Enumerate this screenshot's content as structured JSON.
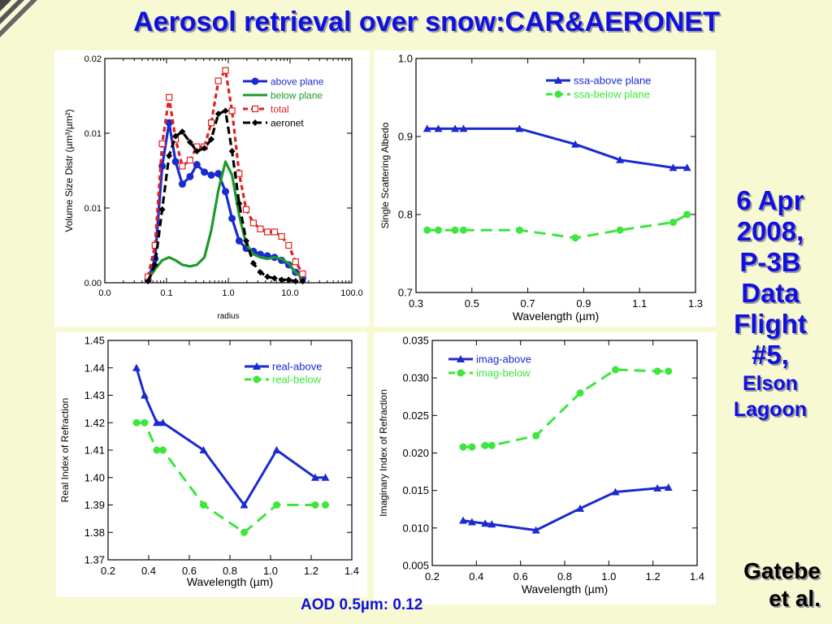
{
  "slide": {
    "title": "Aerosol retrieval over snow:CAR&AERONET",
    "side_lines": [
      "6 Apr",
      "2008,",
      "P-3B",
      "Data",
      "Flight",
      "#5,"
    ],
    "side_small_lines": [
      "Elson",
      "Lagoon"
    ],
    "credit_lines": [
      "Gatebe",
      "et al."
    ],
    "aod_text": "AOD 0.5µm: 0.12"
  },
  "chart_data": [
    {
      "id": "size",
      "type": "line",
      "title": "",
      "xlabel": "radius",
      "ylabel": "Volume Size Distr (µm³/µm²)",
      "xscale": "log",
      "xlim": [
        0.01,
        100
      ],
      "ylim": [
        0,
        0.015
      ],
      "xticks": [
        0.01,
        0.1,
        1,
        10,
        100
      ],
      "xticklabels": [
        "0.0",
        "0.1",
        "1.0",
        "10.0",
        "100.0"
      ],
      "yticks": [
        0,
        0.005,
        0.01,
        0.015
      ],
      "yticklabels": [
        "0.00",
        "0.01",
        "0.01",
        "0.02"
      ],
      "legend_position": "top-right",
      "series": [
        {
          "name": "above plane",
          "color": "#1a2ad0",
          "dash": "none",
          "marker": "circle",
          "x": [
            0.05,
            0.065,
            0.085,
            0.11,
            0.14,
            0.18,
            0.24,
            0.31,
            0.41,
            0.53,
            0.69,
            0.9,
            1.15,
            1.5,
            1.95,
            2.55,
            3.3,
            4.3,
            5.6,
            7.3,
            9.5,
            12.3,
            16
          ],
          "y": [
            0.0002,
            0.0016,
            0.0078,
            0.0107,
            0.0081,
            0.0066,
            0.0071,
            0.0079,
            0.0074,
            0.0072,
            0.0073,
            0.0061,
            0.0043,
            0.0028,
            0.0023,
            0.0021,
            0.0019,
            0.0018,
            0.0017,
            0.0015,
            0.0012,
            0.0007,
            0.0003
          ]
        },
        {
          "name": "below plane",
          "color": "#1e9a2a",
          "dash": "none",
          "marker": "none",
          "x": [
            0.05,
            0.065,
            0.085,
            0.11,
            0.14,
            0.18,
            0.24,
            0.31,
            0.41,
            0.53,
            0.69,
            0.9,
            1.15,
            1.5,
            1.95,
            2.55,
            3.3,
            4.3,
            5.6,
            7.3,
            9.5,
            12.3,
            16
          ],
          "y": [
            0.0002,
            0.0009,
            0.0015,
            0.0017,
            0.0015,
            0.0012,
            0.0011,
            0.0012,
            0.0017,
            0.0035,
            0.0062,
            0.0081,
            0.0072,
            0.0045,
            0.0026,
            0.0019,
            0.0017,
            0.0016,
            0.0017,
            0.0016,
            0.0013,
            0.0007,
            0.0003
          ]
        },
        {
          "name": "total",
          "color": "#e02020",
          "dash": "6,4",
          "marker": "open-square",
          "x": [
            0.05,
            0.065,
            0.085,
            0.11,
            0.14,
            0.18,
            0.24,
            0.31,
            0.41,
            0.53,
            0.69,
            0.9,
            1.15,
            1.5,
            1.95,
            2.55,
            3.3,
            4.3,
            5.6,
            7.3,
            9.5,
            12.3,
            16
          ],
          "y": [
            0.0004,
            0.0025,
            0.0093,
            0.0124,
            0.0096,
            0.0078,
            0.0082,
            0.0091,
            0.0091,
            0.0107,
            0.0135,
            0.0142,
            0.0115,
            0.0073,
            0.0049,
            0.004,
            0.0036,
            0.0034,
            0.0034,
            0.0031,
            0.0025,
            0.0014,
            0.0006
          ]
        },
        {
          "name": "aeronet",
          "color": "#000000",
          "dash": "9,5",
          "marker": "diamond",
          "x": [
            0.05,
            0.065,
            0.085,
            0.11,
            0.14,
            0.18,
            0.24,
            0.31,
            0.41,
            0.53,
            0.69,
            0.9,
            1.15,
            1.5,
            1.95,
            2.55,
            3.3,
            4.3,
            5.6,
            7.3,
            9.5,
            12.3,
            16
          ],
          "y": [
            0.0001,
            0.0012,
            0.0049,
            0.0085,
            0.0098,
            0.0101,
            0.0094,
            0.0088,
            0.009,
            0.0096,
            0.0113,
            0.0115,
            0.0088,
            0.0053,
            0.0028,
            0.0013,
            0.0007,
            0.0004,
            0.0003,
            0.0002,
            0.0002,
            0.0001,
            0.0001
          ]
        }
      ]
    },
    {
      "id": "ssa",
      "type": "line",
      "title": "",
      "xlabel": "Wavelength (µm)",
      "ylabel": "Single Scattering Albedo",
      "xlim": [
        0.3,
        1.3
      ],
      "ylim": [
        0.7,
        1.0
      ],
      "xticks": [
        0.3,
        0.5,
        0.7,
        0.9,
        1.1,
        1.3
      ],
      "xticklabels": [
        "0.3",
        "0.5",
        "0.7",
        "0.9",
        "1.1",
        "1.3"
      ],
      "yticks": [
        0.7,
        0.8,
        0.9,
        1.0
      ],
      "yticklabels": [
        "0.7",
        "0.8",
        "0.9",
        "1.0"
      ],
      "legend_position": "top-right",
      "series": [
        {
          "name": "ssa-above plane",
          "color": "#1a2ad0",
          "dash": "none",
          "marker": "triangle",
          "x": [
            0.34,
            0.38,
            0.44,
            0.47,
            0.67,
            0.87,
            1.03,
            1.22,
            1.27
          ],
          "y": [
            0.91,
            0.91,
            0.91,
            0.91,
            0.91,
            0.89,
            0.87,
            0.86,
            0.86
          ]
        },
        {
          "name": "ssa-below plane",
          "color": "#3ce63c",
          "dash": "14,8",
          "marker": "circle",
          "x": [
            0.34,
            0.38,
            0.44,
            0.47,
            0.67,
            0.87,
            1.03,
            1.22,
            1.27
          ],
          "y": [
            0.78,
            0.78,
            0.78,
            0.78,
            0.78,
            0.77,
            0.78,
            0.79,
            0.8
          ]
        }
      ]
    },
    {
      "id": "real",
      "type": "line",
      "title": "",
      "xlabel": "Wavelength (µm)",
      "ylabel": "Real Index of Refraction",
      "xlim": [
        0.2,
        1.4
      ],
      "ylim": [
        1.37,
        1.45
      ],
      "xticks": [
        0.2,
        0.4,
        0.6,
        0.8,
        1.0,
        1.2,
        1.4
      ],
      "xticklabels": [
        "0.2",
        "0.4",
        "0.6",
        "0.8",
        "1.0",
        "1.2",
        "1.4"
      ],
      "yticks": [
        1.37,
        1.38,
        1.39,
        1.4,
        1.41,
        1.42,
        1.43,
        1.44,
        1.45
      ],
      "yticklabels": [
        "1.37",
        "1.38",
        "1.39",
        "1.40",
        "1.41",
        "1.42",
        "1.43",
        "1.44",
        "1.45"
      ],
      "legend_position": "top-right",
      "series": [
        {
          "name": "real-above",
          "color": "#1a2ad0",
          "dash": "none",
          "marker": "triangle",
          "x": [
            0.34,
            0.38,
            0.44,
            0.47,
            0.67,
            0.87,
            1.03,
            1.22,
            1.27
          ],
          "y": [
            1.44,
            1.43,
            1.42,
            1.42,
            1.41,
            1.39,
            1.41,
            1.4,
            1.4
          ]
        },
        {
          "name": "real-below",
          "color": "#3ce63c",
          "dash": "14,8",
          "marker": "circle",
          "x": [
            0.34,
            0.38,
            0.44,
            0.47,
            0.67,
            0.87,
            1.03,
            1.22,
            1.27
          ],
          "y": [
            1.42,
            1.42,
            1.41,
            1.41,
            1.39,
            1.38,
            1.39,
            1.39,
            1.39
          ]
        }
      ]
    },
    {
      "id": "imag",
      "type": "line",
      "title": "",
      "xlabel": "Wavelength (µm)",
      "ylabel": "Imaginary Index of Refraction",
      "xlim": [
        0.2,
        1.4
      ],
      "ylim": [
        0.005,
        0.035
      ],
      "xticks": [
        0.2,
        0.4,
        0.6,
        0.8,
        1.0,
        1.2,
        1.4
      ],
      "xticklabels": [
        "0.2",
        "0.4",
        "0.6",
        "0.8",
        "1.0",
        "1.2",
        "1.4"
      ],
      "yticks": [
        0.005,
        0.01,
        0.015,
        0.02,
        0.025,
        0.03,
        0.035
      ],
      "yticklabels": [
        "0.005",
        "0.010",
        "0.015",
        "0.020",
        "0.025",
        "0.030",
        "0.035"
      ],
      "legend_position": "top-left",
      "series": [
        {
          "name": "imag-above",
          "color": "#1a2ad0",
          "dash": "none",
          "marker": "triangle",
          "x": [
            0.34,
            0.38,
            0.44,
            0.47,
            0.67,
            0.87,
            1.03,
            1.22,
            1.27
          ],
          "y": [
            0.011,
            0.0108,
            0.0106,
            0.0105,
            0.0097,
            0.0126,
            0.0148,
            0.0153,
            0.0154
          ]
        },
        {
          "name": "imag-below",
          "color": "#3ce63c",
          "dash": "14,8",
          "marker": "circle",
          "x": [
            0.34,
            0.38,
            0.44,
            0.47,
            0.67,
            0.87,
            1.03,
            1.22,
            1.27
          ],
          "y": [
            0.0208,
            0.0208,
            0.021,
            0.021,
            0.0223,
            0.028,
            0.0311,
            0.0309,
            0.0309
          ]
        }
      ]
    }
  ]
}
